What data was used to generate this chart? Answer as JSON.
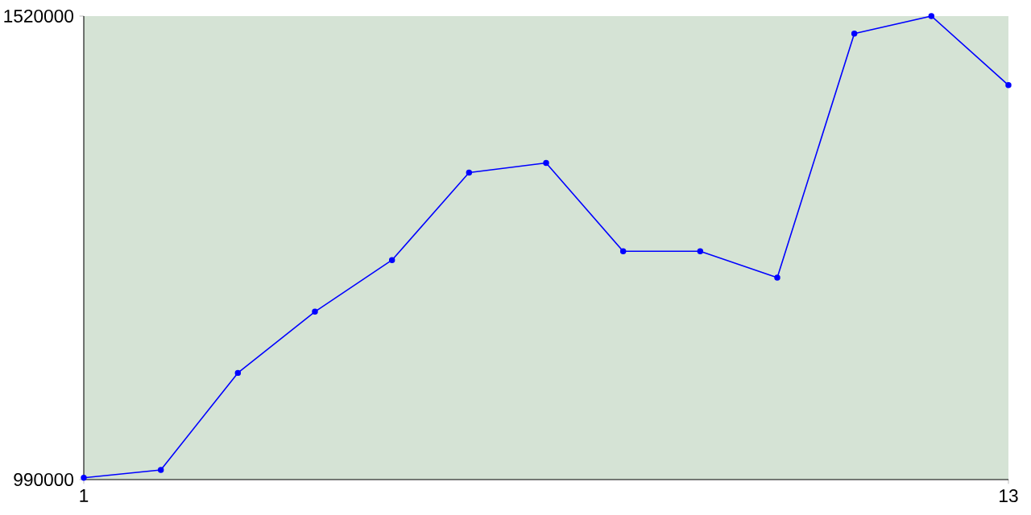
{
  "chart_data": {
    "type": "line",
    "x": [
      1,
      2,
      3,
      4,
      5,
      6,
      7,
      8,
      9,
      10,
      11,
      12,
      13
    ],
    "series": [
      {
        "color": "#0000ff",
        "values": [
          992000,
          1001000,
          1112000,
          1182000,
          1241000,
          1341000,
          1352000,
          1251000,
          1251000,
          1221000,
          1500000,
          1520000,
          1441000
        ]
      }
    ],
    "xlim": [
      1,
      13
    ],
    "xticks": [
      1,
      13
    ],
    "ylim": [
      990000,
      1520000
    ],
    "yticks": [
      990000,
      1520000
    ],
    "marker": "circle",
    "grid": false
  }
}
